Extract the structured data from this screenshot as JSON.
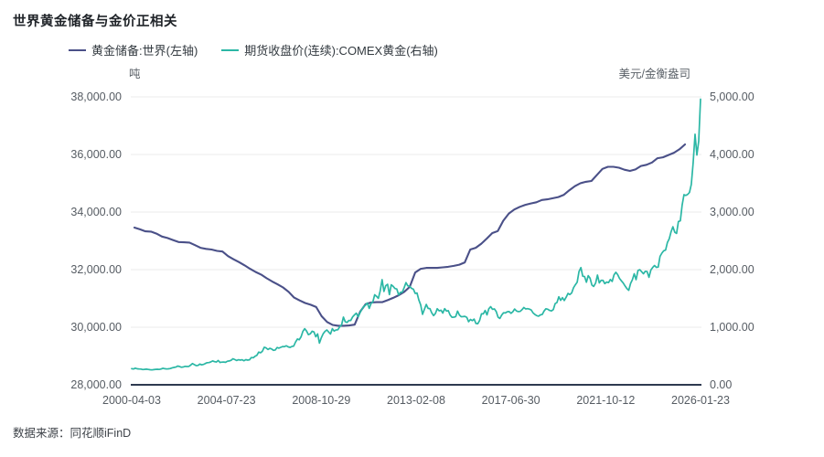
{
  "title": "世界黄金储备与金价正相关",
  "source": "数据来源：同花顺iFinD",
  "colors": {
    "reserve_line": "#4a5088",
    "price_line": "#2bb7a5",
    "axis_line": "#2e3a50",
    "gridline": "#ebebeb",
    "tick_text": "#565c63",
    "title_text": "#1f2328"
  },
  "legend": {
    "items": [
      {
        "label": "黄金储备:世界(左轴)",
        "color": "#4a5088"
      },
      {
        "label": "期货收盘价(连续):COMEX黄金(右轴)",
        "color": "#2bb7a5"
      }
    ]
  },
  "left_axis": {
    "unit": "吨",
    "tick_labels": [
      "38,000.00",
      "36,000.00",
      "34,000.00",
      "32,000.00",
      "30,000.00",
      "28,000.00"
    ],
    "min": 28000,
    "max": 38000
  },
  "right_axis": {
    "unit": "美元/金衡盎司",
    "tick_labels": [
      "5,000.00",
      "4,000.00",
      "3,000.00",
      "2,000.00",
      "1,000.00",
      "0.00"
    ],
    "min": 0,
    "max": 5000
  },
  "x_axis": {
    "tick_labels": [
      "2000-04-03",
      "2004-07-23",
      "2008-10-29",
      "2013-02-08",
      "2017-06-30",
      "2021-10-12",
      "2026-01-23"
    ]
  },
  "chart_data": {
    "type": "line",
    "title": "世界黄金储备与金价正相关",
    "xlabel": "",
    "x_range": [
      "2000-04-03",
      "2026-01-23"
    ],
    "grid": true,
    "legend_position": "top",
    "series": [
      {
        "name": "黄金储备:世界(左轴)",
        "axis": "left",
        "unit": "吨",
        "color": "#4a5088",
        "start": "2000-Q2",
        "freq": "quarterly",
        "ylim": [
          28000,
          38000
        ],
        "values": [
          33460,
          33400,
          33330,
          33320,
          33250,
          33150,
          33100,
          33030,
          32960,
          32950,
          32940,
          32850,
          32760,
          32720,
          32700,
          32650,
          32630,
          32470,
          32360,
          32260,
          32150,
          32030,
          31920,
          31830,
          31700,
          31590,
          31490,
          31380,
          31230,
          31030,
          30930,
          30840,
          30780,
          30700,
          30380,
          30180,
          30080,
          30050,
          30050,
          30060,
          30090,
          30540,
          30800,
          30860,
          30870,
          30870,
          30940,
          31020,
          31110,
          31230,
          31400,
          31900,
          32030,
          32060,
          32060,
          32060,
          32080,
          32100,
          32130,
          32170,
          32250,
          32700,
          32760,
          32900,
          33080,
          33270,
          33340,
          33700,
          33950,
          34090,
          34180,
          34250,
          34300,
          34340,
          34420,
          34440,
          34480,
          34520,
          34600,
          34760,
          34900,
          35000,
          35050,
          35080,
          35290,
          35500,
          35570,
          35570,
          35540,
          35470,
          35430,
          35480,
          35600,
          35640,
          35720,
          35870,
          35900,
          35980,
          36060,
          36180,
          36350
        ]
      },
      {
        "name": "期货收盘价(连续):COMEX黄金(右轴)",
        "axis": "right",
        "unit": "美元/金衡盎司",
        "color": "#2bb7a5",
        "start": "2000-04",
        "freq": "monthly",
        "ylim": [
          0,
          5000
        ],
        "values": [
          280,
          275,
          289,
          278,
          274,
          273,
          265,
          269,
          272,
          266,
          262,
          258,
          263,
          268,
          270,
          267,
          274,
          287,
          280,
          275,
          277,
          282,
          296,
          301,
          308,
          326,
          318,
          304,
          310,
          320,
          317,
          319,
          342,
          368,
          350,
          334,
          336,
          361,
          346,
          354,
          370,
          384,
          386,
          398,
          414,
          402,
          396,
          423,
          388,
          393,
          395,
          391,
          410,
          415,
          425,
          453,
          438,
          422,
          435,
          428,
          435,
          418,
          437,
          429,
          433,
          473,
          470,
          495,
          513,
          568,
          556,
          582,
          651,
          642,
          613,
          634,
          623,
          599,
          604,
          647,
          636,
          651,
          665,
          662,
          677,
          659,
          650,
          665,
          672,
          743,
          795,
          783,
          834,
          928,
          975,
          933,
          871,
          886,
          930,
          918,
          833,
          884,
          724,
          816,
          884,
          928,
          952,
          916,
          883,
          975,
          934,
          953,
          955,
          1008,
          1040,
          1175,
          1096,
          1083,
          1118,
          1116,
          1180,
          1215,
          1244,
          1181,
          1248,
          1310,
          1357,
          1383,
          1421,
          1327,
          1411,
          1439,
          1563,
          1536,
          1502,
          1628,
          1826,
          1620,
          1722,
          1746,
          1566,
          1737,
          1711,
          1671,
          1664,
          1562,
          1604,
          1610,
          1685,
          1774,
          1719,
          1710,
          1675,
          1660,
          1588,
          1594,
          1472,
          1387,
          1224,
          1312,
          1396,
          1327,
          1323,
          1250,
          1202,
          1240,
          1321,
          1284,
          1295,
          1246,
          1322,
          1281,
          1287,
          1211,
          1171,
          1175,
          1184,
          1279,
          1213,
          1183,
          1184,
          1189,
          1171,
          1095,
          1135,
          1114,
          1141,
          1065,
          1060,
          1116,
          1234,
          1232,
          1290,
          1215,
          1320,
          1357,
          1311,
          1317,
          1272,
          1174,
          1152,
          1211,
          1251,
          1247,
          1268,
          1272,
          1242,
          1268,
          1316,
          1283,
          1271,
          1275,
          1303,
          1343,
          1318,
          1322,
          1315,
          1300,
          1251,
          1223,
          1202,
          1192,
          1215,
          1220,
          1281,
          1321,
          1313,
          1292,
          1283,
          1306,
          1410,
          1428,
          1529,
          1466,
          1513,
          1464,
          1523,
          1588,
          1567,
          1596,
          1686,
          1737,
          1781,
          1966,
          2035,
          1886,
          1879,
          1781,
          1895,
          1850,
          1734,
          1708,
          1768,
          1905,
          1770,
          1814,
          1814,
          1757,
          1784,
          1775,
          1829,
          1796,
          1909,
          1954,
          1912,
          1848,
          1807,
          1766,
          1716,
          1672,
          1641,
          1760,
          1826,
          1928,
          1826,
          1986,
          1999,
          1964,
          1929,
          1971,
          1966,
          1866,
          1994,
          2038,
          2072,
          2040,
          2045,
          2230,
          2286,
          2327,
          2339,
          2473,
          2536,
          2659,
          2744,
          2651,
          2629,
          2835,
          2848,
          3123,
          3302,
          3289,
          3307,
          3340,
          3480,
          3850,
          4350,
          3990,
          4230,
          4960
        ]
      }
    ]
  }
}
